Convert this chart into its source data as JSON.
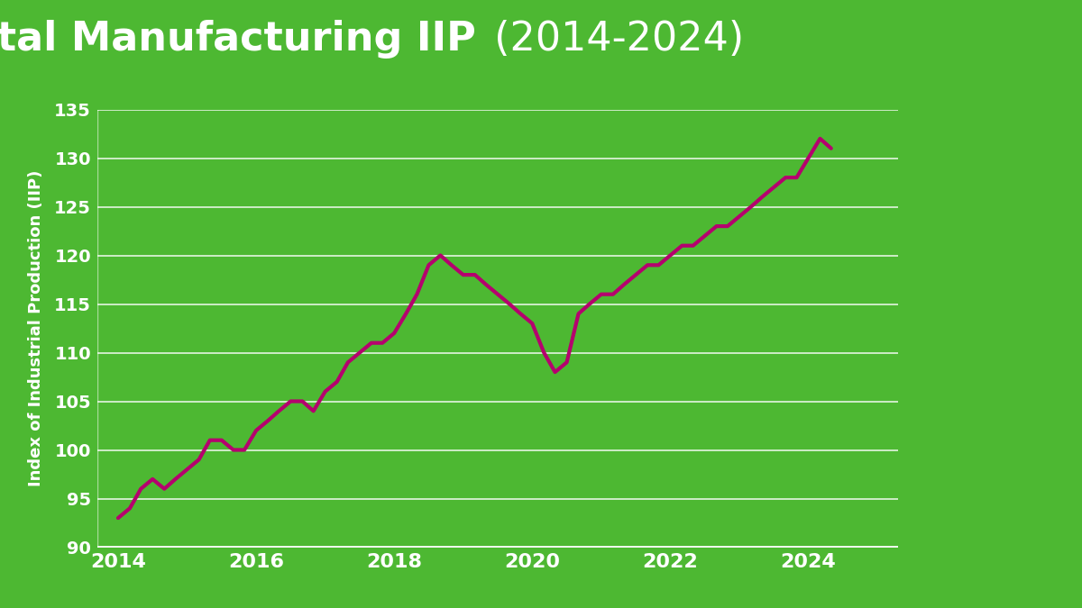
{
  "title_part1": "Indonesia Total Manufacturing IIP",
  "title_part2": " (2014-2024)",
  "ylabel": "Index of Industrial Production (IIP)",
  "bg_color": "#4db832",
  "line_color": "#b5006e",
  "line_width": 3.0,
  "grid_color": "#ffffff",
  "axis_text_color": "#ffffff",
  "ylim": [
    90,
    135
  ],
  "yticks": [
    90,
    95,
    100,
    105,
    110,
    115,
    120,
    125,
    130,
    135
  ],
  "xlim": [
    2013.7,
    2025.3
  ],
  "xticks": [
    2014,
    2016,
    2018,
    2020,
    2022,
    2024
  ],
  "years": [
    2014.0,
    2014.17,
    2014.33,
    2014.5,
    2014.67,
    2014.83,
    2015.0,
    2015.17,
    2015.33,
    2015.5,
    2015.67,
    2015.83,
    2016.0,
    2016.17,
    2016.33,
    2016.5,
    2016.67,
    2016.83,
    2017.0,
    2017.17,
    2017.33,
    2017.5,
    2017.67,
    2017.83,
    2018.0,
    2018.17,
    2018.33,
    2018.5,
    2018.67,
    2018.83,
    2019.0,
    2019.17,
    2019.33,
    2019.5,
    2019.67,
    2019.83,
    2020.0,
    2020.17,
    2020.33,
    2020.5,
    2020.67,
    2020.83,
    2021.0,
    2021.17,
    2021.33,
    2021.5,
    2021.67,
    2021.83,
    2022.0,
    2022.17,
    2022.33,
    2022.5,
    2022.67,
    2022.83,
    2023.0,
    2023.17,
    2023.33,
    2023.5,
    2023.67,
    2023.83,
    2024.0,
    2024.17,
    2024.33
  ],
  "values": [
    93,
    94,
    96,
    97,
    96,
    97,
    98,
    99,
    101,
    101,
    100,
    100,
    102,
    103,
    104,
    105,
    105,
    104,
    106,
    107,
    109,
    110,
    111,
    111,
    112,
    114,
    116,
    119,
    120,
    119,
    118,
    118,
    117,
    116,
    115,
    114,
    113,
    110,
    108,
    109,
    114,
    115,
    116,
    116,
    117,
    118,
    119,
    119,
    120,
    121,
    121,
    122,
    123,
    123,
    124,
    125,
    126,
    127,
    128,
    128,
    130,
    132,
    131
  ],
  "title_fontsize": 32,
  "tick_fontsize": 16,
  "ylabel_fontsize": 13
}
